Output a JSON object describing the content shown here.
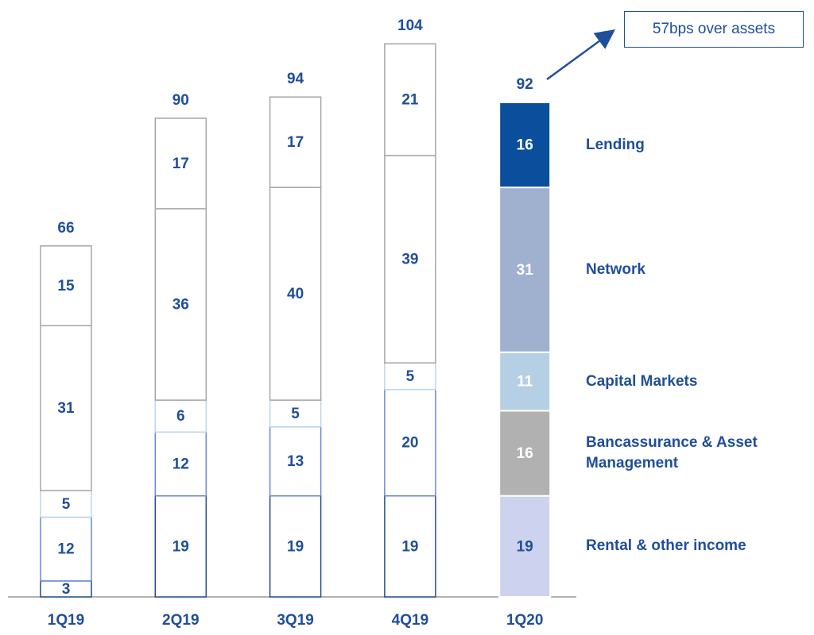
{
  "chart_data": {
    "type": "stacked_bar",
    "categories": [
      "1Q19",
      "2Q19",
      "3Q19",
      "4Q19",
      "1Q20"
    ],
    "series": [
      {
        "name": "Rental & other income",
        "color": "#cdd3ee",
        "outline": "#1f4e8c",
        "label_color": "#1f4e9a",
        "values": [
          3,
          19,
          19,
          19,
          19
        ]
      },
      {
        "name": "Bancassurance & Asset Management",
        "color": "#b1b1b1",
        "outline": "#6a86d8",
        "label_color": "#ffffff",
        "values": [
          12,
          12,
          13,
          20,
          16
        ]
      },
      {
        "name": "Capital Markets",
        "color": "#b5d0e4",
        "outline": "#bcd6ea",
        "label_color": "#ffffff",
        "values": [
          5,
          6,
          5,
          5,
          11
        ]
      },
      {
        "name": "Network",
        "color": "#9fb1cf",
        "outline": "#a6a6a6",
        "label_color": "#ffffff",
        "values": [
          31,
          36,
          40,
          39,
          31
        ]
      },
      {
        "name": "Lending",
        "color": "#0b4f9c",
        "outline": "#a6a6a6",
        "label_color": "#ffffff",
        "values": [
          15,
          17,
          17,
          21,
          16
        ]
      }
    ],
    "totals": [
      66,
      90,
      94,
      104,
      92
    ],
    "annotation": "57bps over assets",
    "ylim": [
      0,
      110
    ]
  }
}
